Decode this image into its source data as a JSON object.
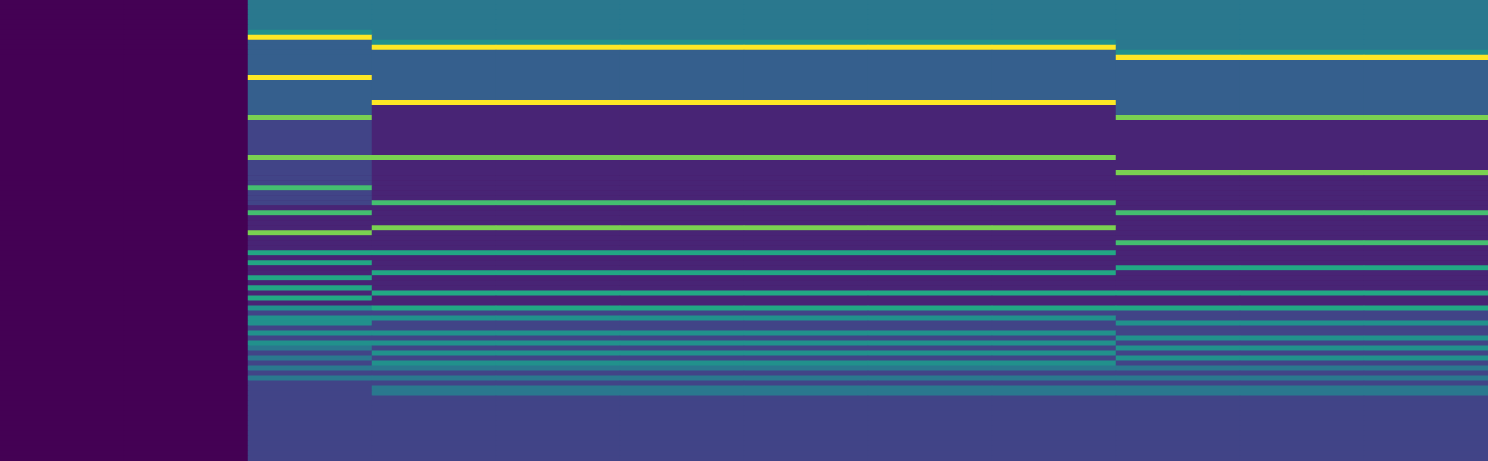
{
  "chart_data": {
    "type": "heatmap",
    "color": "viridis",
    "tick_labels": false,
    "value_range": [
      0,
      10
    ],
    "cells": [
      [
        0,
        0,
        4,
        4,
        4,
        4,
        4,
        4,
        4,
        4,
        4,
        4
      ],
      [
        0,
        0,
        4,
        4,
        4,
        4,
        4,
        4,
        4,
        4,
        4,
        4
      ],
      [
        0,
        0,
        4,
        4,
        4,
        4,
        4,
        4,
        4,
        4,
        4,
        4
      ],
      [
        0,
        0,
        4,
        4,
        4,
        4,
        4,
        4,
        4,
        4,
        4,
        4
      ],
      [
        0,
        0,
        4,
        4,
        4,
        4,
        4,
        4,
        4,
        4,
        4,
        4
      ],
      [
        0,
        0,
        4,
        4,
        4,
        4,
        4,
        4,
        4,
        4,
        4,
        4
      ],
      [
        0,
        0,
        5,
        4,
        4,
        4,
        4,
        4,
        4,
        4,
        4,
        4
      ],
      [
        0,
        0,
        10,
        4,
        4,
        4,
        4,
        4,
        4,
        4,
        4,
        4
      ],
      [
        0,
        0,
        3,
        5,
        5,
        5,
        5,
        5,
        5,
        4,
        4,
        4
      ],
      [
        0,
        0,
        3,
        10,
        10,
        10,
        10,
        10,
        10,
        4,
        4,
        4
      ],
      [
        0,
        0,
        3,
        3,
        3,
        3,
        3,
        3,
        3,
        5,
        5,
        5
      ],
      [
        0,
        0,
        3,
        3,
        3,
        3,
        3,
        3,
        3,
        10,
        10,
        10
      ],
      [
        0,
        0,
        3,
        3,
        3,
        3,
        3,
        3,
        3,
        3,
        3,
        3
      ],
      [
        0,
        0,
        3,
        3,
        3,
        3,
        3,
        3,
        3,
        3,
        3,
        3
      ],
      [
        0,
        0,
        3,
        3,
        3,
        3,
        3,
        3,
        3,
        3,
        3,
        3
      ],
      [
        0,
        0,
        10,
        3,
        3,
        3,
        3,
        3,
        3,
        3,
        3,
        3
      ],
      [
        0,
        0,
        3,
        3,
        3,
        3,
        3,
        3,
        3,
        3,
        3,
        3
      ],
      [
        0,
        0,
        3,
        3,
        3,
        3,
        3,
        3,
        3,
        3,
        3,
        3
      ],
      [
        0,
        0,
        3,
        3,
        3,
        3,
        3,
        3,
        3,
        3,
        3,
        3
      ],
      [
        0,
        0,
        3,
        3,
        3,
        3,
        3,
        3,
        3,
        3,
        3,
        3
      ],
      [
        0,
        0,
        3,
        10,
        10,
        10,
        10,
        10,
        10,
        3,
        3,
        3
      ],
      [
        0,
        0,
        3,
        1,
        1,
        1,
        1,
        1,
        1,
        3,
        3,
        3
      ],
      [
        0,
        0,
        3,
        1,
        1,
        1,
        1,
        1,
        1,
        3,
        3,
        3
      ],
      [
        0,
        0,
        8,
        1,
        1,
        1,
        1,
        1,
        1,
        8,
        8,
        8
      ],
      [
        0,
        0,
        2,
        1,
        1,
        1,
        1,
        1,
        1,
        1,
        1,
        1
      ],
      [
        0,
        0,
        2,
        1,
        1,
        1,
        1,
        1,
        1,
        1,
        1,
        1
      ],
      [
        0,
        0,
        2,
        1,
        1,
        1,
        1,
        1,
        1,
        1,
        1,
        1
      ],
      [
        0,
        0,
        2,
        1,
        1,
        1,
        1,
        1,
        1,
        1,
        1,
        1
      ],
      [
        0,
        0,
        2,
        1,
        1,
        1,
        1,
        1,
        1,
        1,
        1,
        1
      ],
      [
        0,
        0,
        2,
        1,
        1,
        1,
        1,
        1,
        1,
        1,
        1,
        1
      ],
      [
        0,
        0,
        2,
        1,
        1,
        1,
        1,
        1,
        1,
        1,
        1,
        1
      ],
      [
        0,
        0,
        8,
        8,
        8,
        8,
        8,
        8,
        8,
        1,
        1,
        1
      ],
      [
        0,
        0,
        2,
        1,
        1,
        1,
        1,
        1,
        1,
        1,
        1,
        1
      ],
      [
        0,
        0,
        2,
        1,
        1,
        1,
        1,
        1,
        1,
        1,
        1,
        1
      ],
      [
        0,
        0,
        2,
        1,
        1,
        1,
        1,
        1,
        1,
        8,
        8,
        8
      ],
      [
        0,
        0,
        2,
        1,
        1,
        1,
        1,
        1,
        1,
        1,
        1,
        1
      ],
      [
        0,
        0,
        2,
        1,
        1,
        1,
        1,
        1,
        1,
        1,
        1,
        1
      ],
      [
        0,
        0,
        7,
        1,
        1,
        1,
        1,
        1,
        1,
        1,
        1,
        1
      ],
      [
        0,
        0,
        2,
        1,
        1,
        1,
        1,
        1,
        1,
        1,
        1,
        1
      ],
      [
        0,
        0,
        2,
        1,
        1,
        1,
        1,
        1,
        1,
        1,
        1,
        1
      ],
      [
        0,
        0,
        2,
        7,
        7,
        7,
        7,
        7,
        7,
        1,
        1,
        1
      ],
      [
        0,
        0,
        1,
        1,
        1,
        1,
        1,
        1,
        1,
        1,
        1,
        1
      ],
      [
        0,
        0,
        7,
        1,
        1,
        1,
        1,
        1,
        1,
        7,
        7,
        7
      ],
      [
        0,
        0,
        1,
        1,
        1,
        1,
        1,
        1,
        1,
        1,
        1,
        1
      ],
      [
        0,
        0,
        1,
        1,
        1,
        1,
        1,
        1,
        1,
        1,
        1,
        1
      ],
      [
        0,
        0,
        1,
        8,
        8,
        8,
        8,
        8,
        8,
        1,
        1,
        1
      ],
      [
        0,
        0,
        8,
        1,
        1,
        1,
        1,
        1,
        1,
        1,
        1,
        1
      ],
      [
        0,
        0,
        1,
        1,
        1,
        1,
        1,
        1,
        1,
        1,
        1,
        1
      ],
      [
        0,
        0,
        1,
        1,
        1,
        1,
        1,
        1,
        1,
        7,
        7,
        7
      ],
      [
        0,
        0,
        1,
        1,
        1,
        1,
        1,
        1,
        1,
        1,
        1,
        1
      ],
      [
        0,
        0,
        6,
        6,
        6,
        6,
        6,
        6,
        6,
        1,
        1,
        1
      ],
      [
        0,
        0,
        1,
        1,
        1,
        1,
        1,
        1,
        1,
        1,
        1,
        1
      ],
      [
        0,
        0,
        6,
        1,
        1,
        1,
        1,
        1,
        1,
        1,
        1,
        1
      ],
      [
        0,
        0,
        1,
        1,
        1,
        1,
        1,
        1,
        1,
        6,
        6,
        6
      ],
      [
        0,
        0,
        1,
        6,
        6,
        6,
        6,
        6,
        6,
        1,
        1,
        1
      ],
      [
        0,
        0,
        6,
        1,
        1,
        1,
        1,
        1,
        1,
        1,
        1,
        1
      ],
      [
        0,
        0,
        1,
        1,
        1,
        1,
        1,
        1,
        1,
        1,
        1,
        1
      ],
      [
        0,
        0,
        6,
        1,
        1,
        1,
        1,
        1,
        1,
        1,
        1,
        1
      ],
      [
        0,
        0,
        1,
        6,
        6,
        6,
        6,
        6,
        6,
        6,
        6,
        6
      ],
      [
        0,
        0,
        6,
        1,
        1,
        1,
        1,
        1,
        1,
        1,
        1,
        1
      ],
      [
        0,
        0,
        1,
        1,
        1,
        1,
        1,
        1,
        1,
        1,
        1,
        1
      ],
      [
        0,
        0,
        5,
        6,
        6,
        6,
        6,
        6,
        6,
        6,
        6,
        6
      ],
      [
        0,
        0,
        2,
        2,
        2,
        2,
        2,
        2,
        2,
        2,
        2,
        2
      ],
      [
        0,
        0,
        5,
        5,
        5,
        5,
        5,
        5,
        5,
        2,
        2,
        2
      ],
      [
        0,
        0,
        5,
        2,
        2,
        2,
        2,
        2,
        2,
        5,
        5,
        5
      ],
      [
        0,
        0,
        2,
        2,
        2,
        2,
        2,
        2,
        2,
        2,
        2,
        2
      ],
      [
        0,
        0,
        5,
        5,
        5,
        5,
        5,
        5,
        5,
        2,
        2,
        2
      ],
      [
        0,
        0,
        2,
        2,
        2,
        2,
        2,
        2,
        2,
        5,
        5,
        5
      ],
      [
        0,
        0,
        5,
        5,
        5,
        5,
        5,
        5,
        5,
        2,
        2,
        2
      ],
      [
        0,
        0,
        4,
        2,
        2,
        2,
        2,
        2,
        2,
        5,
        5,
        5
      ],
      [
        0,
        0,
        2,
        5,
        5,
        5,
        5,
        5,
        5,
        2,
        2,
        2
      ],
      [
        0,
        0,
        4,
        2,
        2,
        2,
        2,
        2,
        2,
        5,
        5,
        5
      ],
      [
        0,
        0,
        2,
        5,
        5,
        5,
        5,
        5,
        5,
        2,
        2,
        2
      ],
      [
        0,
        0,
        4,
        4,
        4,
        4,
        4,
        4,
        4,
        4,
        4,
        4
      ],
      [
        0,
        0,
        2,
        2,
        2,
        2,
        2,
        2,
        2,
        2,
        2,
        2
      ],
      [
        0,
        0,
        4,
        4,
        4,
        4,
        4,
        4,
        4,
        4,
        4,
        4
      ],
      [
        0,
        0,
        2,
        2,
        2,
        2,
        2,
        2,
        2,
        2,
        2,
        2
      ],
      [
        0,
        0,
        2,
        4,
        4,
        4,
        4,
        4,
        4,
        4,
        4,
        4
      ],
      [
        0,
        0,
        2,
        4,
        4,
        4,
        4,
        4,
        4,
        4,
        4,
        4
      ],
      [
        0,
        0,
        2,
        2,
        2,
        2,
        2,
        2,
        2,
        2,
        2,
        2
      ],
      [
        0,
        0,
        2,
        2,
        2,
        2,
        2,
        2,
        2,
        2,
        2,
        2
      ],
      [
        0,
        0,
        2,
        2,
        2,
        2,
        2,
        2,
        2,
        2,
        2,
        2
      ],
      [
        0,
        0,
        2,
        2,
        2,
        2,
        2,
        2,
        2,
        2,
        2,
        2
      ],
      [
        0,
        0,
        2,
        2,
        2,
        2,
        2,
        2,
        2,
        2,
        2,
        2
      ],
      [
        0,
        0,
        2,
        2,
        2,
        2,
        2,
        2,
        2,
        2,
        2,
        2
      ],
      [
        0,
        0,
        2,
        2,
        2,
        2,
        2,
        2,
        2,
        2,
        2,
        2
      ],
      [
        0,
        0,
        2,
        2,
        2,
        2,
        2,
        2,
        2,
        2,
        2,
        2
      ],
      [
        0,
        0,
        2,
        2,
        2,
        2,
        2,
        2,
        2,
        2,
        2,
        2
      ],
      [
        0,
        0,
        2,
        2,
        2,
        2,
        2,
        2,
        2,
        2,
        2,
        2
      ],
      [
        0,
        0,
        2,
        2,
        2,
        2,
        2,
        2,
        2,
        2,
        2,
        2
      ],
      [
        0,
        0,
        2,
        2,
        2,
        2,
        2,
        2,
        2,
        2,
        2,
        2
      ],
      [
        0,
        0,
        2,
        2,
        2,
        2,
        2,
        2,
        2,
        2,
        2,
        2
      ]
    ]
  }
}
